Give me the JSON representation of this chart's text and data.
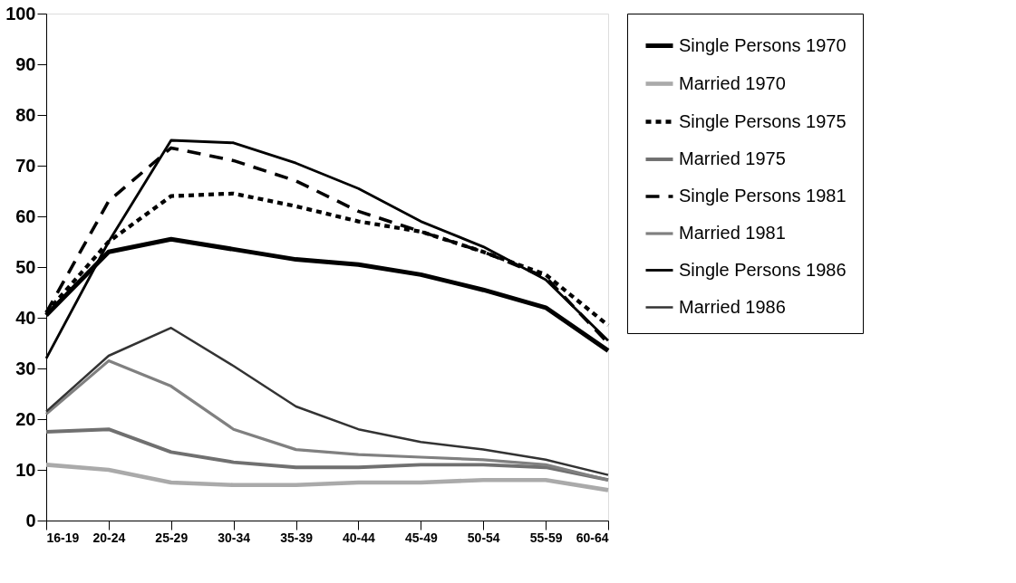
{
  "chart_data": {
    "type": "line",
    "categories": [
      "16-19",
      "20-24",
      "25-29",
      "30-34",
      "35-39",
      "40-44",
      "45-49",
      "50-54",
      "55-59",
      "60-64"
    ],
    "series": [
      {
        "name": "Single Persons 1970",
        "color": "#000000",
        "values": [
          40.5,
          53,
          55.5,
          53.5,
          51.5,
          50.5,
          48.5,
          45.5,
          42,
          33.5
        ]
      },
      {
        "name": "Married  1970",
        "color": "#aaaaaa",
        "values": [
          11,
          10,
          7.5,
          7,
          7,
          7.5,
          7.5,
          8,
          8,
          6
        ]
      },
      {
        "name": "Single Persons 1975",
        "color": "#000000",
        "line_style": "dashed",
        "values": [
          41,
          55,
          64,
          64.5,
          62,
          59,
          57,
          53,
          48.5,
          38.5
        ]
      },
      {
        "name": "Married  1975",
        "color": "#707070",
        "values": [
          17.5,
          18,
          13.5,
          11.5,
          10.5,
          10.5,
          11,
          11,
          10.5,
          8
        ]
      },
      {
        "name": "Single Persons 1981",
        "color": "#000000",
        "line_style": "dashed",
        "values": [
          41,
          63,
          73.5,
          71,
          67,
          61,
          57,
          53,
          48,
          35
        ]
      },
      {
        "name": "Married  1981",
        "color": "#808080",
        "values": [
          21,
          31.5,
          26.5,
          18,
          14,
          13,
          12.5,
          12,
          11,
          8
        ]
      },
      {
        "name": "Single Persons 1986",
        "color": "#000000",
        "values": [
          32,
          55,
          75,
          74.5,
          70.5,
          65.5,
          59,
          54,
          47.5,
          35.5
        ]
      },
      {
        "name": "Married  1986",
        "color": "#333333",
        "values": [
          21.5,
          32.5,
          38,
          30.5,
          22.5,
          18,
          15.5,
          14,
          12,
          9
        ]
      }
    ],
    "ylim": [
      0,
      100
    ],
    "yticks": [
      0,
      10,
      20,
      30,
      40,
      50,
      60,
      70,
      80,
      90,
      100
    ],
    "grid": false,
    "legend": "right",
    "line_style": "solid",
    "marker": "none"
  }
}
